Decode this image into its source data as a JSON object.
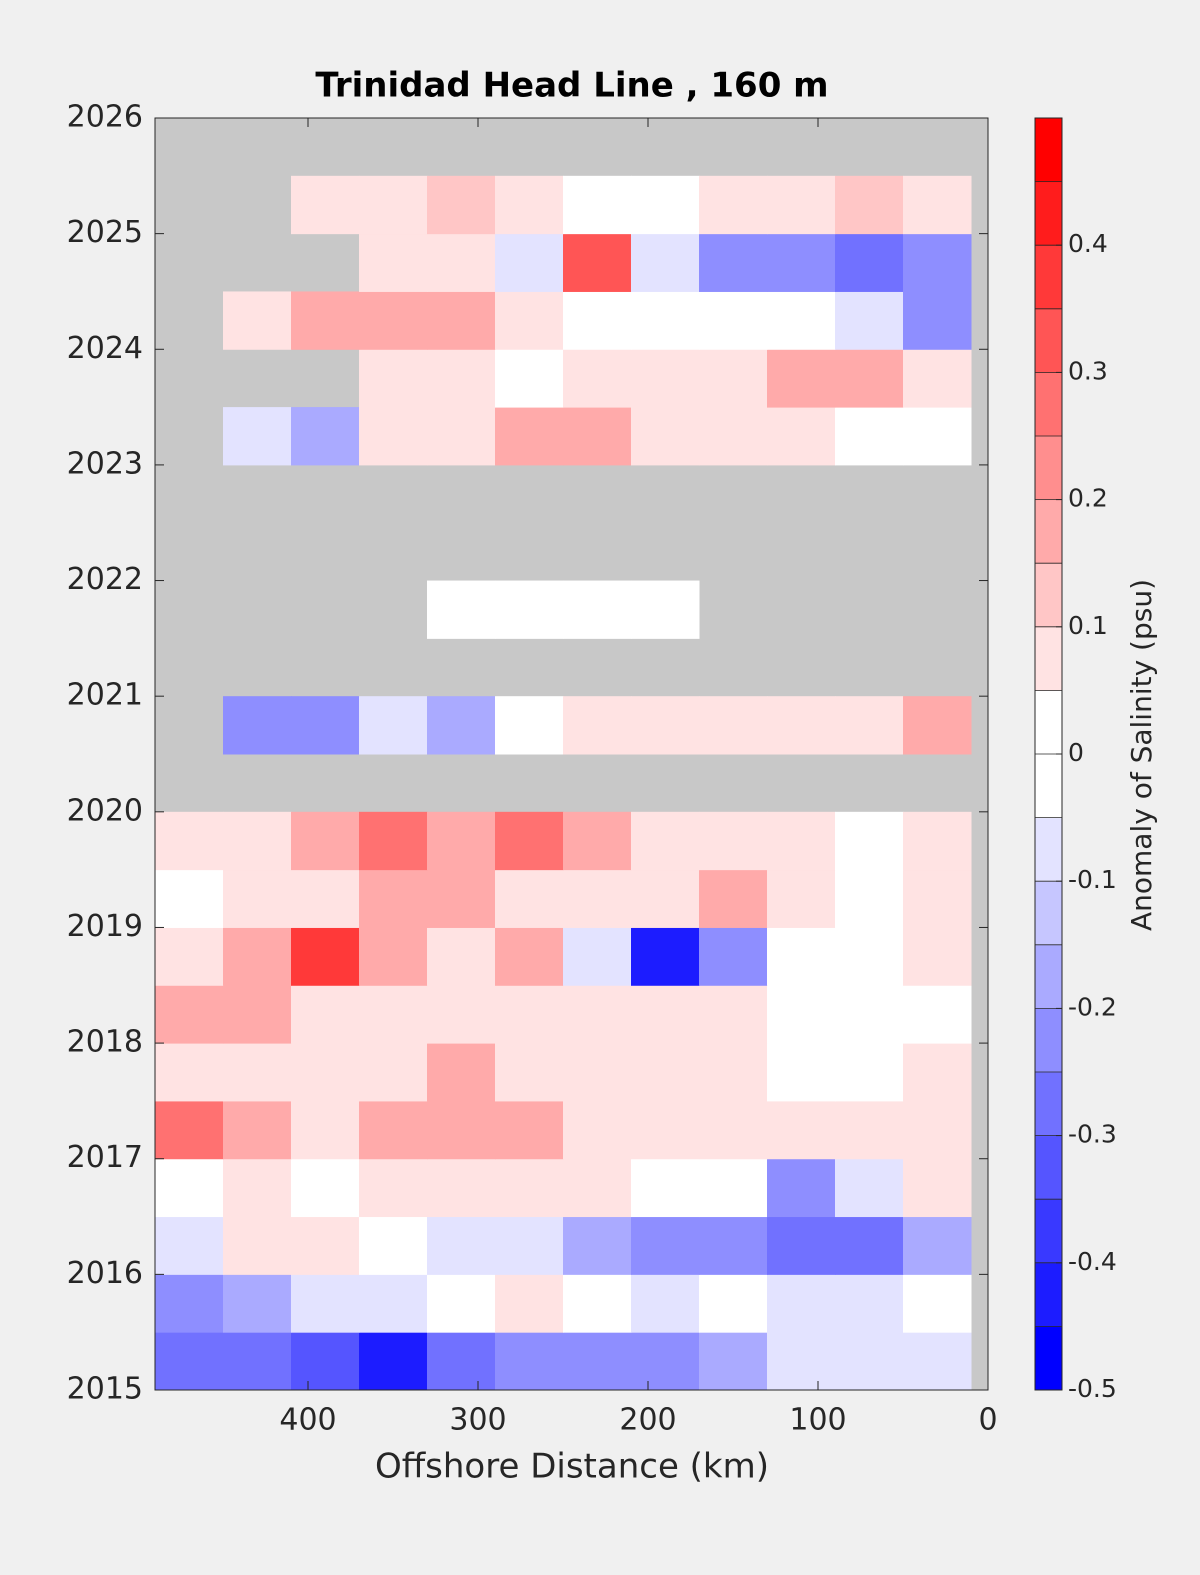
{
  "chart_data": {
    "type": "heatmap",
    "title": "Trinidad Head Line , 160 m",
    "x_label": "Offshore Distance (km)",
    "colorbar_label": "Anomaly of Salinity (psu)",
    "xlim": [
      490,
      0
    ],
    "ylim": [
      2015,
      2026
    ],
    "xticks": [
      400,
      300,
      200,
      100,
      0
    ],
    "yticks": [
      2015,
      2016,
      2017,
      2018,
      2019,
      2020,
      2021,
      2022,
      2023,
      2024,
      2025,
      2026
    ],
    "clim": [
      -0.5,
      0.5
    ],
    "level_step": 0.05,
    "cticks": [
      -0.5,
      -0.4,
      -0.3,
      -0.2,
      -0.1,
      0,
      0.1,
      0.2,
      0.3,
      0.4
    ],
    "cmap_low": "#0000ff",
    "cmap_mid": "#ffffff",
    "cmap_high": "#ff0000",
    "nan_color": "#c8c8c8",
    "x": [
      470,
      430,
      390,
      350,
      310,
      270,
      230,
      190,
      150,
      110,
      70,
      30
    ],
    "y": [
      2015.25,
      2015.75,
      2016.25,
      2016.75,
      2017.25,
      2017.75,
      2018.25,
      2018.75,
      2019.25,
      2019.75,
      2020.25,
      2020.75,
      2021.25,
      2021.75,
      2022.25,
      2022.75,
      2023.25,
      2023.75,
      2024.25,
      2024.75,
      2025.25,
      2025.75
    ],
    "z": [
      [
        -0.3,
        -0.3,
        -0.35,
        -0.4,
        -0.3,
        -0.25,
        -0.2,
        -0.2,
        -0.15,
        -0.1,
        -0.1,
        -0.1
      ],
      [
        -0.2,
        -0.15,
        -0.1,
        -0.1,
        -0.05,
        0.05,
        -0.05,
        -0.1,
        -0.05,
        -0.1,
        -0.1,
        -0.05
      ],
      [
        -0.1,
        0.05,
        0.05,
        0,
        -0.1,
        -0.1,
        -0.15,
        -0.2,
        -0.2,
        -0.3,
        -0.3,
        -0.15
      ],
      [
        0,
        0.05,
        0,
        0.05,
        0.1,
        0.05,
        0.05,
        0,
        -0.05,
        -0.2,
        -0.1,
        0.05
      ],
      [
        0.25,
        0.2,
        0.1,
        0.15,
        0.15,
        0.15,
        0.1,
        0.1,
        0.05,
        0.05,
        0.05,
        0.05
      ],
      [
        0.1,
        0.05,
        0.05,
        0.1,
        0.15,
        0.1,
        0.1,
        0.05,
        0.05,
        0,
        0,
        0.05
      ],
      [
        0.15,
        0.15,
        0.1,
        0.1,
        0.05,
        0.05,
        0.05,
        0.05,
        0.05,
        0,
        0,
        0
      ],
      [
        0.1,
        0.15,
        0.35,
        0.2,
        0.1,
        0.2,
        -0.1,
        -0.4,
        -0.2,
        -0.05,
        0,
        0.05
      ],
      [
        -0.05,
        0.05,
        0.1,
        0.2,
        0.15,
        0.05,
        0.1,
        0.1,
        0.15,
        0.05,
        0,
        0.05
      ],
      [
        0.05,
        0.1,
        0.15,
        0.25,
        0.2,
        0.25,
        0.2,
        0.1,
        0.05,
        0.05,
        0,
        0.05
      ],
      [
        null,
        null,
        null,
        null,
        null,
        null,
        null,
        null,
        null,
        null,
        null,
        null
      ],
      [
        null,
        -0.2,
        -0.25,
        -0.1,
        -0.15,
        -0.05,
        0.05,
        0.1,
        0.05,
        0.1,
        0.1,
        0.15
      ],
      [
        null,
        null,
        null,
        null,
        null,
        null,
        null,
        null,
        null,
        null,
        null,
        null
      ],
      [
        null,
        null,
        null,
        null,
        0,
        -0.05,
        -0.05,
        0,
        null,
        null,
        null,
        null
      ],
      [
        null,
        null,
        null,
        null,
        null,
        null,
        null,
        null,
        null,
        null,
        null,
        null
      ],
      [
        null,
        null,
        null,
        null,
        null,
        null,
        null,
        null,
        null,
        null,
        null,
        null
      ],
      [
        null,
        -0.1,
        -0.15,
        0.05,
        0.1,
        0.15,
        0.15,
        0.1,
        0.05,
        0.05,
        0,
        0
      ],
      [
        null,
        null,
        null,
        0.1,
        0.05,
        0.02,
        0.05,
        0.05,
        0.1,
        0.2,
        0.15,
        0.05
      ],
      [
        null,
        0.1,
        0.15,
        0.2,
        0.15,
        0.05,
        0,
        0,
        0.02,
        -0.05,
        -0.1,
        -0.2
      ],
      [
        null,
        null,
        null,
        0.1,
        0.05,
        -0.1,
        0.3,
        -0.1,
        -0.2,
        -0.25,
        -0.3,
        -0.25
      ],
      [
        null,
        null,
        0.05,
        0.1,
        0.12,
        0.1,
        0.02,
        0,
        0.08,
        0.1,
        0.12,
        0.08
      ],
      [
        null,
        null,
        null,
        null,
        null,
        null,
        null,
        null,
        null,
        null,
        null,
        null
      ]
    ]
  }
}
